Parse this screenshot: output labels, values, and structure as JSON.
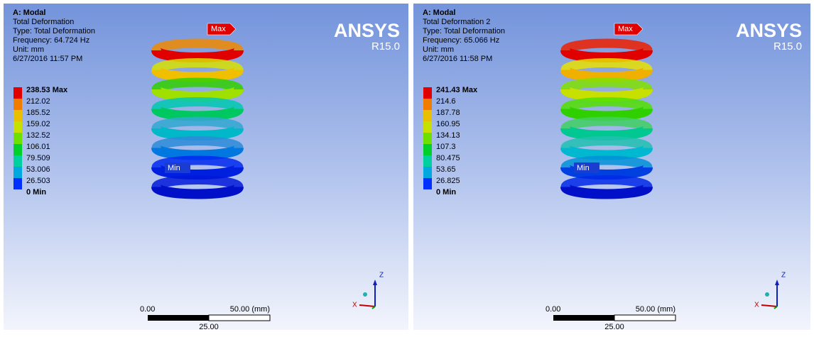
{
  "panels": [
    {
      "header": {
        "title": "A: Modal",
        "lines": [
          "Total Deformation",
          "Type: Total Deformation",
          "Frequency: 64.724 Hz",
          "Unit: mm",
          "6/27/2016 11:57 PM"
        ]
      },
      "legend": [
        "238.53 Max",
        "212.02",
        "185.52",
        "159.02",
        "132.52",
        "106.01",
        "79.509",
        "53.006",
        "26.503",
        "0 Min"
      ],
      "brand": "ANSYS",
      "version": "R15.0",
      "tags": {
        "max": "Max",
        "min": "Min"
      },
      "scale": {
        "start": "0.00",
        "end": "50.00 (mm)",
        "mid": "25.00"
      },
      "triad": {
        "z": "Z",
        "x": "X"
      }
    },
    {
      "header": {
        "title": "A: Modal",
        "lines": [
          "Total Deformation 2",
          "Type: Total Deformation",
          "Frequency: 65.066 Hz",
          "Unit: mm",
          "6/27/2016 11:58 PM"
        ]
      },
      "legend": [
        "241.43 Max",
        "214.6",
        "187.78",
        "160.95",
        "134.13",
        "107.3",
        "80.475",
        "53.65",
        "26.825",
        "0 Min"
      ],
      "brand": "ANSYS",
      "version": "R15.0",
      "tags": {
        "max": "Max",
        "min": "Min"
      },
      "scale": {
        "start": "0.00",
        "end": "50.00 (mm)",
        "mid": "25.00"
      },
      "triad": {
        "z": "Z",
        "x": "X"
      }
    }
  ]
}
